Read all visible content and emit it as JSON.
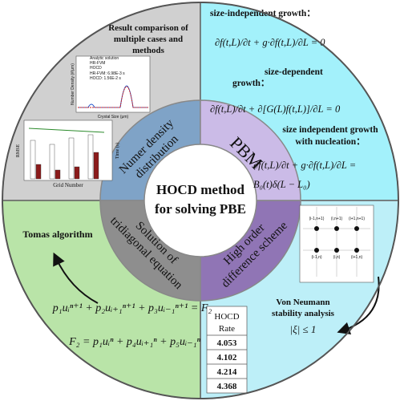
{
  "center": {
    "lines": [
      "HOCD method",
      "for solving PBE"
    ]
  },
  "ring_labels": [
    {
      "lines": [
        "Numer density",
        "distribution"
      ]
    },
    {
      "lines": [
        "PBM"
      ]
    },
    {
      "lines": [
        "High order",
        "difference scheme"
      ]
    },
    {
      "lines": [
        "Solution of",
        "tridiagonal equation"
      ]
    }
  ],
  "results": {
    "title": [
      "Result comparison of",
      "multiple cases and",
      "methods"
    ],
    "legend": [
      "Analytic solution",
      "HR-FVM",
      "HOCD"
    ],
    "timing": [
      "HR-FVM: 6.98E-3 s",
      "HOCD: 1.56E-2 s"
    ],
    "x_label": "Crystal Size (μm)",
    "y_label": "Number Density (#/μm)",
    "bar_x_label": "Grid Number",
    "bar_y_label": "RMSE",
    "bar_y2_label": "Time (s)"
  },
  "pbm": {
    "items": [
      {
        "heading": [
          "size-independent growth："
        ],
        "equation": [
          "∂f(t,L)/∂t + g·∂f(t,L)/∂L = 0"
        ]
      },
      {
        "heading": [
          "size-dependent",
          "growth："
        ],
        "equation": [
          "∂f(t,L)/∂t + ∂[G(L)f(t,L)]/∂L = 0"
        ]
      },
      {
        "heading": [
          "size independent growth",
          "with nucleation："
        ],
        "equation": [
          "∂f(t,L)/∂t + g·∂f(t,L)/∂L =",
          "B₀(t)δ(L − L₀)"
        ]
      }
    ]
  },
  "scheme": {
    "grid_labels": [
      "(i-1,n+1)",
      "(i,n+1)",
      "(i+1,n+1)",
      "(i-1,n)",
      "(i,n)",
      "(i+1,n)"
    ],
    "stability": [
      "Von Neumann",
      "stability analysis"
    ],
    "condition": "|ξ| ≤ 1",
    "table": {
      "header": [
        "HOCD",
        "Rate"
      ],
      "rows": [
        "4.053",
        "4.102",
        "4.214",
        "4.368"
      ]
    }
  },
  "tridiagonal": {
    "algorithm": "Tomas algorithm",
    "equations": [
      "p₁uᵢⁿ⁺¹ + p₂uᵢ₊₁ⁿ⁺¹ + p₃uᵢ₋₁ⁿ⁺¹ = F₂",
      "F₂ = p₁uᵢⁿ + p₄uᵢ₊₁ⁿ + p₅uᵢ₋₁ⁿ"
    ]
  }
}
